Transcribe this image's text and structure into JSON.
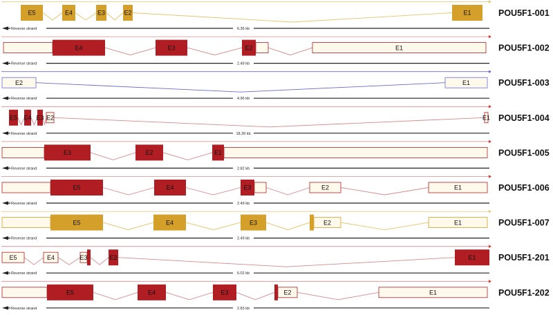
{
  "colors": {
    "gold": "#D4A02A",
    "gold_line": "#E2C56A",
    "red": "#B01E24",
    "red_line": "#D98A8E",
    "blue_line": "#6A6ACF",
    "blue_box": "#6A6ACF",
    "utr_bg": "#FFF9EC",
    "bg": "#FFFFFF",
    "scale_line": "#222222",
    "arrow_red": "#E0302F",
    "arrow_gold": "#E3C86E"
  },
  "strand_label": "Reverse strand",
  "transcripts": [
    {
      "name": "POU5F1-001",
      "scale": "6.36 kb",
      "color": "gold",
      "exons": [
        {
          "label": "E5",
          "x0": 30,
          "x1": 62,
          "coding": true
        },
        {
          "label": "E4",
          "x0": 90,
          "x1": 109,
          "coding": true
        },
        {
          "label": "E3",
          "x0": 139,
          "x1": 154,
          "coding": true
        },
        {
          "label": "E2",
          "x0": 178,
          "x1": 192,
          "coding": true
        },
        {
          "label": "E1",
          "x0": 654,
          "x1": 698,
          "coding": true
        }
      ]
    },
    {
      "name": "POU5F1-002",
      "scale": "2.49 kb",
      "color": "red",
      "exons": [
        {
          "label": "",
          "x0": 5,
          "x1": 76,
          "coding": false
        },
        {
          "label": "E4",
          "x0": 76,
          "x1": 152,
          "coding": true
        },
        {
          "label": "E3",
          "x0": 225,
          "x1": 271,
          "coding": true
        },
        {
          "label": "E2",
          "x0": 350,
          "x1": 370,
          "coding": true
        },
        {
          "label": "",
          "x0": 370,
          "x1": 388,
          "coding": false
        },
        {
          "label": "E1",
          "x0": 452,
          "x1": 703,
          "coding": false
        }
      ]
    },
    {
      "name": "POU5F1-003",
      "scale": "4.96 kb",
      "color": "blue",
      "exons": [
        {
          "label": "E2",
          "x0": 3,
          "x1": 52,
          "coding": false
        },
        {
          "label": "E1",
          "x0": 644,
          "x1": 705,
          "coding": false
        }
      ]
    },
    {
      "name": "POU5F1-004",
      "scale": "18.39 kb",
      "color": "red",
      "exons": [
        {
          "label": "E5",
          "x0": 13,
          "x1": 26,
          "coding": true
        },
        {
          "label": "E4",
          "x0": 35,
          "x1": 45,
          "coding": true
        },
        {
          "label": "E3",
          "x0": 54,
          "x1": 62,
          "coding": true
        },
        {
          "label": "E2",
          "x0": 67,
          "x1": 78,
          "coding": false
        },
        {
          "label": "E1",
          "x0": 701,
          "x1": 706,
          "coding": false
        }
      ]
    },
    {
      "name": "POU5F1-005",
      "scale": "2.82 kb",
      "color": "red",
      "exons": [
        {
          "label": "",
          "x0": 3,
          "x1": 64,
          "coding": false
        },
        {
          "label": "E3",
          "x0": 64,
          "x1": 131,
          "coding": true
        },
        {
          "label": "E2",
          "x0": 196,
          "x1": 236,
          "coding": true
        },
        {
          "label": "E1",
          "x0": 307,
          "x1": 324,
          "coding": true
        },
        {
          "label": "",
          "x0": 324,
          "x1": 705,
          "coding": false
        }
      ]
    },
    {
      "name": "POU5F1-006",
      "scale": "2.49 kb",
      "color": "red",
      "exons": [
        {
          "label": "",
          "x0": 3,
          "x1": 73,
          "coding": false
        },
        {
          "label": "E5",
          "x0": 73,
          "x1": 149,
          "coding": true
        },
        {
          "label": "E4",
          "x0": 223,
          "x1": 269,
          "coding": true
        },
        {
          "label": "E3",
          "x0": 348,
          "x1": 368,
          "coding": true
        },
        {
          "label": "",
          "x0": 368,
          "x1": 385,
          "coding": false
        },
        {
          "label": "E2",
          "x0": 448,
          "x1": 493,
          "coding": false
        },
        {
          "label": "E1",
          "x0": 620,
          "x1": 705,
          "coding": false
        }
      ]
    },
    {
      "name": "POU5F1-007",
      "scale": "2.49 kb",
      "color": "gold",
      "exons": [
        {
          "label": "",
          "x0": 3,
          "x1": 73,
          "coding": false
        },
        {
          "label": "E5",
          "x0": 73,
          "x1": 149,
          "coding": true
        },
        {
          "label": "E4",
          "x0": 222,
          "x1": 269,
          "coding": true
        },
        {
          "label": "E3",
          "x0": 348,
          "x1": 385,
          "coding": true
        },
        {
          "label": "",
          "x0": 448,
          "x1": 454,
          "coding": true
        },
        {
          "label": "E2",
          "x0": 454,
          "x1": 493,
          "coding": false
        },
        {
          "label": "E1",
          "x0": 620,
          "x1": 705,
          "coding": false
        }
      ]
    },
    {
      "name": "POU5F1-201",
      "scale": "6.02 kb",
      "color": "red",
      "exons": [
        {
          "label": "E5",
          "x0": 3,
          "x1": 35,
          "coding": false
        },
        {
          "label": "E4",
          "x0": 63,
          "x1": 84,
          "coding": false
        },
        {
          "label": "E3",
          "x0": 116,
          "x1": 126,
          "coding": false
        },
        {
          "label": "",
          "x0": 126,
          "x1": 131,
          "coding": true
        },
        {
          "label": "E2",
          "x0": 157,
          "x1": 171,
          "coding": true
        },
        {
          "label": "E1",
          "x0": 658,
          "x1": 708,
          "coding": true
        }
      ]
    },
    {
      "name": "POU5F1-202",
      "scale": "2.83 kb",
      "color": "red",
      "exons": [
        {
          "label": "",
          "x0": 3,
          "x1": 68,
          "coding": false
        },
        {
          "label": "E5",
          "x0": 68,
          "x1": 135,
          "coding": true
        },
        {
          "label": "E4",
          "x0": 199,
          "x1": 240,
          "coding": true
        },
        {
          "label": "E3",
          "x0": 308,
          "x1": 342,
          "coding": true
        },
        {
          "label": "",
          "x0": 397,
          "x1": 402,
          "coding": true
        },
        {
          "label": "E2",
          "x0": 402,
          "x1": 430,
          "coding": false
        },
        {
          "label": "E1",
          "x0": 548,
          "x1": 705,
          "coding": false
        }
      ]
    }
  ]
}
